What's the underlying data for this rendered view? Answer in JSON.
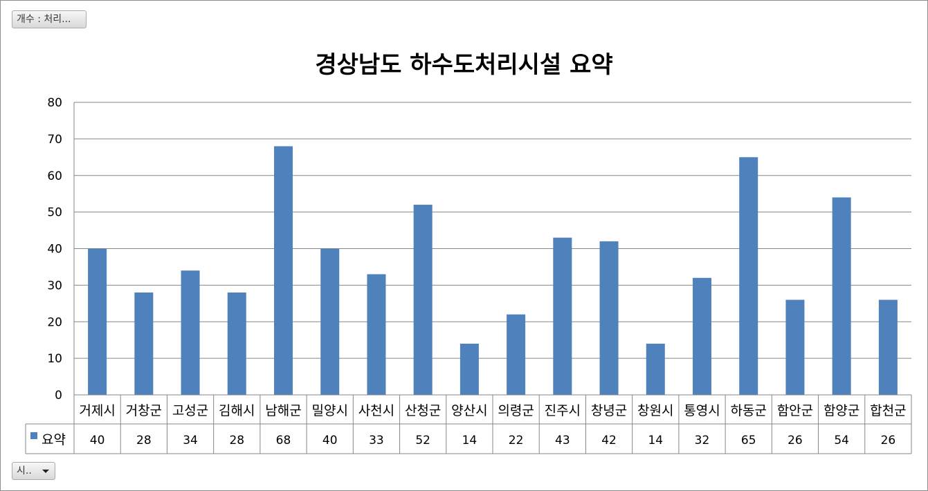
{
  "buttons": {
    "value_field": "개수 : 처리...",
    "axis_field": "시.."
  },
  "colors": {
    "bar": "#4f81bd",
    "grid": "#868686",
    "axis": "#868686",
    "text": "#000000"
  },
  "chart_data": {
    "type": "bar",
    "title": "경상남도 하수도처리시설 요약",
    "xlabel": "",
    "ylabel": "",
    "categories": [
      "거제시",
      "거창군",
      "고성군",
      "김해시",
      "남해군",
      "밀양시",
      "사천시",
      "산청군",
      "양산시",
      "의령군",
      "진주시",
      "창녕군",
      "창원시",
      "통영시",
      "하동군",
      "함안군",
      "함양군",
      "합천군"
    ],
    "series": [
      {
        "name": "요약",
        "values": [
          40,
          28,
          34,
          28,
          68,
          40,
          33,
          52,
          14,
          22,
          43,
          42,
          14,
          32,
          65,
          26,
          54,
          26
        ]
      }
    ],
    "ylim": [
      0,
      80
    ],
    "yticks": [
      0,
      10,
      20,
      30,
      40,
      50,
      60,
      70,
      80
    ],
    "grid": true,
    "data_table": true
  }
}
